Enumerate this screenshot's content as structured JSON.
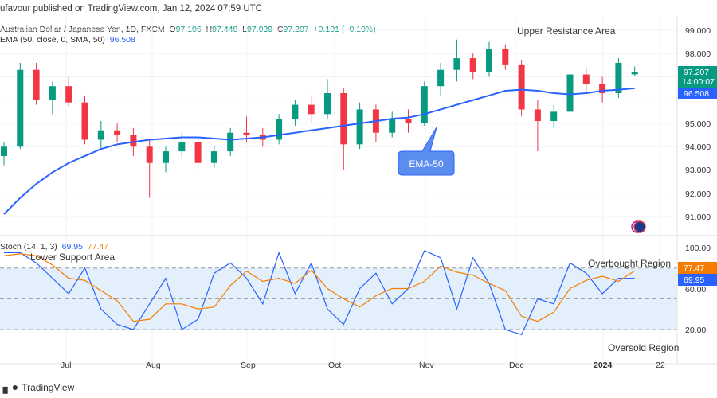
{
  "header": {
    "published": "ufavour published on TradingView.com, Jan 12, 2024 07:59 UTC",
    "symbol": "Australian Dollar / Japanese Yen, 1D, FXCM",
    "open": "97.106",
    "high": "97.448",
    "low": "97.039",
    "close": "97.207",
    "change": "+0.101 (+0.10%)",
    "ema_label": "EMA (50, close, 0, SMA, 50)",
    "ema_value": "96.508"
  },
  "stoch": {
    "label": "Stoch (14, 1, 3)",
    "k": "69.95",
    "d": "77.47"
  },
  "annotations": {
    "upper": "Upper Resistance Area",
    "lower": "Lower Support Area",
    "ema": "EMA-50",
    "overbought": "Overbought Region",
    "oversold": "Oversold Region"
  },
  "price_axis": [
    "99.000",
    "98.000",
    "95.000",
    "94.000",
    "93.000",
    "92.000",
    "91.000"
  ],
  "price_tags": {
    "last": "97.207",
    "countdown": "14:00:07",
    "ema": "96.508"
  },
  "stoch_axis": [
    "100.00",
    "60.00",
    "20.00"
  ],
  "time_axis": [
    "Jul",
    "Aug",
    "Sep",
    "Oct",
    "Nov",
    "Dec",
    "2024",
    "22"
  ],
  "footer": {
    "brand": "TradingView"
  },
  "colors": {
    "up": "#089981",
    "down": "#f23645",
    "ema": "#2962ff",
    "k": "#2962ff",
    "d": "#f57c00"
  },
  "chart_data": {
    "type": "candlestick",
    "ylim": [
      90.5,
      99.5
    ],
    "ohlc": [
      [
        93.6,
        94.2,
        93.2,
        94.0
      ],
      [
        94.0,
        97.6,
        93.9,
        97.3
      ],
      [
        97.3,
        97.6,
        95.8,
        96.0
      ],
      [
        96.0,
        96.8,
        95.4,
        96.6
      ],
      [
        96.6,
        97.0,
        95.7,
        95.9
      ],
      [
        95.9,
        96.2,
        94.1,
        94.3
      ],
      [
        94.3,
        95.1,
        93.9,
        94.7
      ],
      [
        94.7,
        95.0,
        94.2,
        94.5
      ],
      [
        94.5,
        94.8,
        93.6,
        94.0
      ],
      [
        94.0,
        94.3,
        91.8,
        93.3
      ],
      [
        93.3,
        94.0,
        92.9,
        93.8
      ],
      [
        93.8,
        94.6,
        93.5,
        94.2
      ],
      [
        94.2,
        94.4,
        93.0,
        93.3
      ],
      [
        93.3,
        94.0,
        93.1,
        93.8
      ],
      [
        93.8,
        94.8,
        93.6,
        94.6
      ],
      [
        94.6,
        95.3,
        94.2,
        94.5
      ],
      [
        94.5,
        94.8,
        94.0,
        94.3
      ],
      [
        94.3,
        95.4,
        94.1,
        95.2
      ],
      [
        95.2,
        96.0,
        94.9,
        95.8
      ],
      [
        95.8,
        96.2,
        95.0,
        95.4
      ],
      [
        95.4,
        96.9,
        95.2,
        96.3
      ],
      [
        96.3,
        96.5,
        93.0,
        94.1
      ],
      [
        94.1,
        95.9,
        93.9,
        95.6
      ],
      [
        95.6,
        95.8,
        94.2,
        94.6
      ],
      [
        94.6,
        95.5,
        94.4,
        95.2
      ],
      [
        95.2,
        95.6,
        94.6,
        95.0
      ],
      [
        95.0,
        96.8,
        94.9,
        96.6
      ],
      [
        96.6,
        97.6,
        96.2,
        97.3
      ],
      [
        97.3,
        98.6,
        96.8,
        97.8
      ],
      [
        97.8,
        98.0,
        96.9,
        97.2
      ],
      [
        97.2,
        98.5,
        97.0,
        98.2
      ],
      [
        98.2,
        98.4,
        97.3,
        97.5
      ],
      [
        97.5,
        97.7,
        95.3,
        95.6
      ],
      [
        95.6,
        96.0,
        93.8,
        95.1
      ],
      [
        95.1,
        95.8,
        94.8,
        95.5
      ],
      [
        95.5,
        97.5,
        95.4,
        97.1
      ],
      [
        97.1,
        97.4,
        96.3,
        96.7
      ],
      [
        96.7,
        97.0,
        95.9,
        96.3
      ],
      [
        96.3,
        97.8,
        96.1,
        97.6
      ],
      [
        97.106,
        97.448,
        97.039,
        97.207
      ]
    ],
    "ema": [
      91.1,
      91.8,
      92.4,
      92.9,
      93.3,
      93.6,
      93.9,
      94.1,
      94.2,
      94.3,
      94.35,
      94.4,
      94.4,
      94.35,
      94.3,
      94.35,
      94.4,
      94.5,
      94.6,
      94.7,
      94.8,
      94.9,
      95.0,
      95.1,
      95.2,
      95.25,
      95.4,
      95.6,
      95.8,
      96.0,
      96.2,
      96.4,
      96.45,
      96.4,
      96.3,
      96.25,
      96.3,
      96.4,
      96.45,
      96.508
    ],
    "stoch_k": [
      95,
      95,
      85,
      70,
      55,
      80,
      40,
      25,
      20,
      45,
      70,
      20,
      30,
      75,
      85,
      70,
      45,
      95,
      55,
      85,
      40,
      25,
      60,
      75,
      45,
      60,
      97,
      90,
      40,
      90,
      65,
      20,
      15,
      50,
      45,
      85,
      75,
      55,
      70,
      69.95
    ],
    "stoch_d": [
      92,
      94,
      92,
      83,
      70,
      68,
      58,
      48,
      28,
      30,
      45,
      45,
      40,
      42,
      63,
      77,
      67,
      70,
      65,
      78,
      60,
      50,
      42,
      53,
      60,
      60,
      67,
      82,
      76,
      73,
      65,
      58,
      33,
      28,
      37,
      60,
      68,
      72,
      67,
      77.47
    ],
    "stoch_levels": [
      80,
      50,
      20
    ],
    "stoch_ylim": [
      0,
      100
    ]
  }
}
